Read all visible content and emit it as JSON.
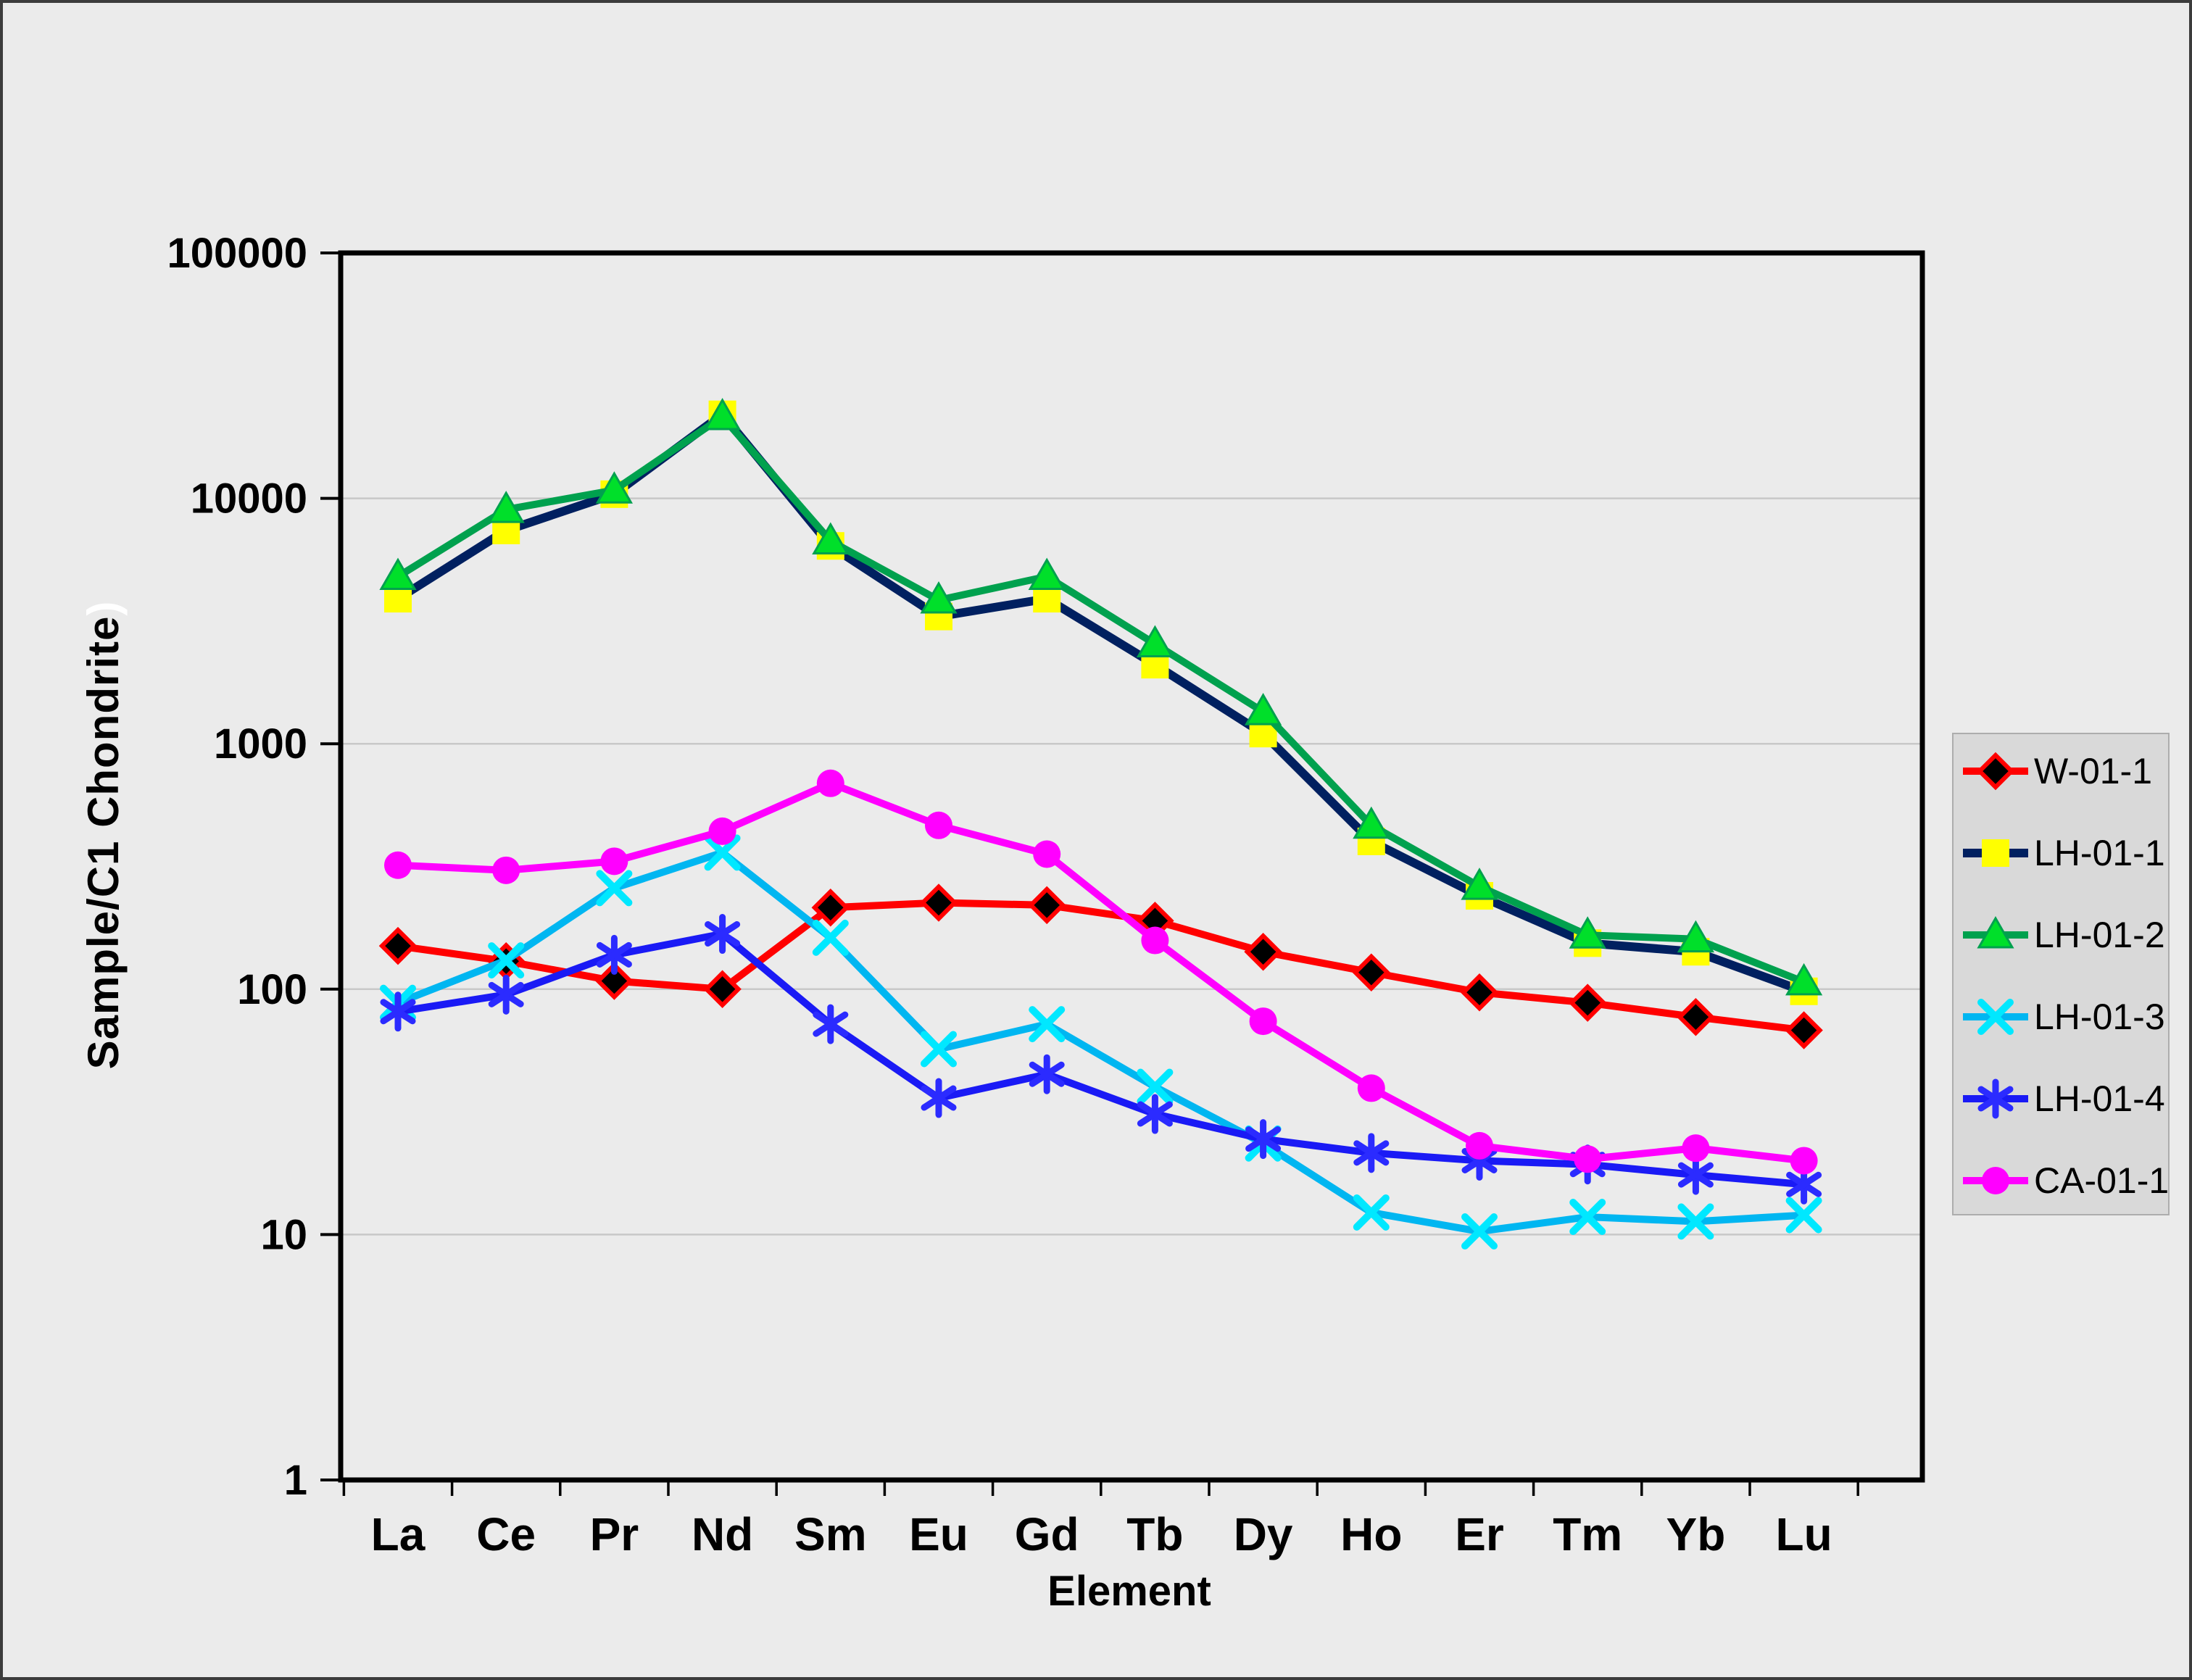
{
  "y_axis": {
    "title": "Sample/C1 Chondrite",
    "title_suffix": ")",
    "tick_labels": [
      "100000",
      "10000",
      "1000",
      "100",
      "10",
      "1"
    ]
  },
  "x_axis": {
    "title": "Element"
  },
  "colors": {
    "page_background": "#EBEBEB",
    "plot_border": "#000000",
    "gridline": "#C8C8C8",
    "legend_background": "#D9D9D9",
    "legend_border": "#ADADAD"
  },
  "chart_data": {
    "type": "line",
    "yscale": "log",
    "ylim": [
      1,
      100000
    ],
    "grid": "horizontal decade gridlines",
    "legend_position": "right",
    "categories": [
      "La",
      "Ce",
      "Pr",
      "Nd",
      "Sm",
      "Eu",
      "Gd",
      "Tb",
      "Dy",
      "Ho",
      "Er",
      "Tm",
      "Yb",
      "Lu"
    ],
    "series": [
      {
        "name": "W-01-1",
        "line_color": "#FF0000",
        "line_width": 10,
        "marker_shape": "diamond",
        "marker_fill": "#000000",
        "marker_stroke": "#FF0000",
        "values": [
          150,
          130,
          108,
          100,
          215,
          225,
          220,
          190,
          142,
          117,
          97,
          88,
          77,
          68
        ]
      },
      {
        "name": "LH-01-1",
        "line_color": "#002060",
        "line_width": 12,
        "marker_shape": "square",
        "marker_fill": "#FFFF00",
        "marker_stroke": "#E8E800",
        "values": [
          3900,
          7400,
          10400,
          22000,
          6400,
          3300,
          3900,
          2100,
          1100,
          400,
          240,
          154,
          142,
          98
        ]
      },
      {
        "name": "LH-01-2",
        "line_color": "#00A14E",
        "line_width": 10,
        "marker_shape": "triangle",
        "marker_fill": "#00DF2A",
        "marker_stroke": "#00A14E",
        "values": [
          4800,
          9000,
          10800,
          21500,
          6700,
          3850,
          4800,
          2550,
          1350,
          465,
          262,
          166,
          160,
          107
        ]
      },
      {
        "name": "LH-01-3",
        "line_color": "#00B6F1",
        "line_width": 10,
        "marker_shape": "x",
        "marker_fill": "#00E8FF",
        "marker_stroke": "#00E8FF",
        "values": [
          88,
          131,
          258,
          360,
          162,
          57,
          72,
          40,
          23.5,
          12.3,
          10.3,
          11.8,
          11.3,
          12
        ]
      },
      {
        "name": "LH-01-4",
        "line_color": "#1A1AF5",
        "line_width": 10,
        "marker_shape": "asterisk",
        "marker_fill": "#2B2BFF",
        "marker_stroke": "#2B2BFF",
        "values": [
          81,
          95,
          138,
          168,
          72,
          36,
          45,
          31,
          24.5,
          21.5,
          20,
          19.3,
          17.5,
          16
        ]
      },
      {
        "name": "CA-01-1",
        "line_color": "#FF00FF",
        "line_width": 10,
        "marker_shape": "circle",
        "marker_fill": "#FF00FF",
        "marker_stroke": "#FF00FF",
        "values": [
          320,
          305,
          332,
          440,
          690,
          465,
          355,
          158,
          74,
          39.5,
          23,
          20.3,
          22.5,
          20
        ]
      }
    ]
  }
}
